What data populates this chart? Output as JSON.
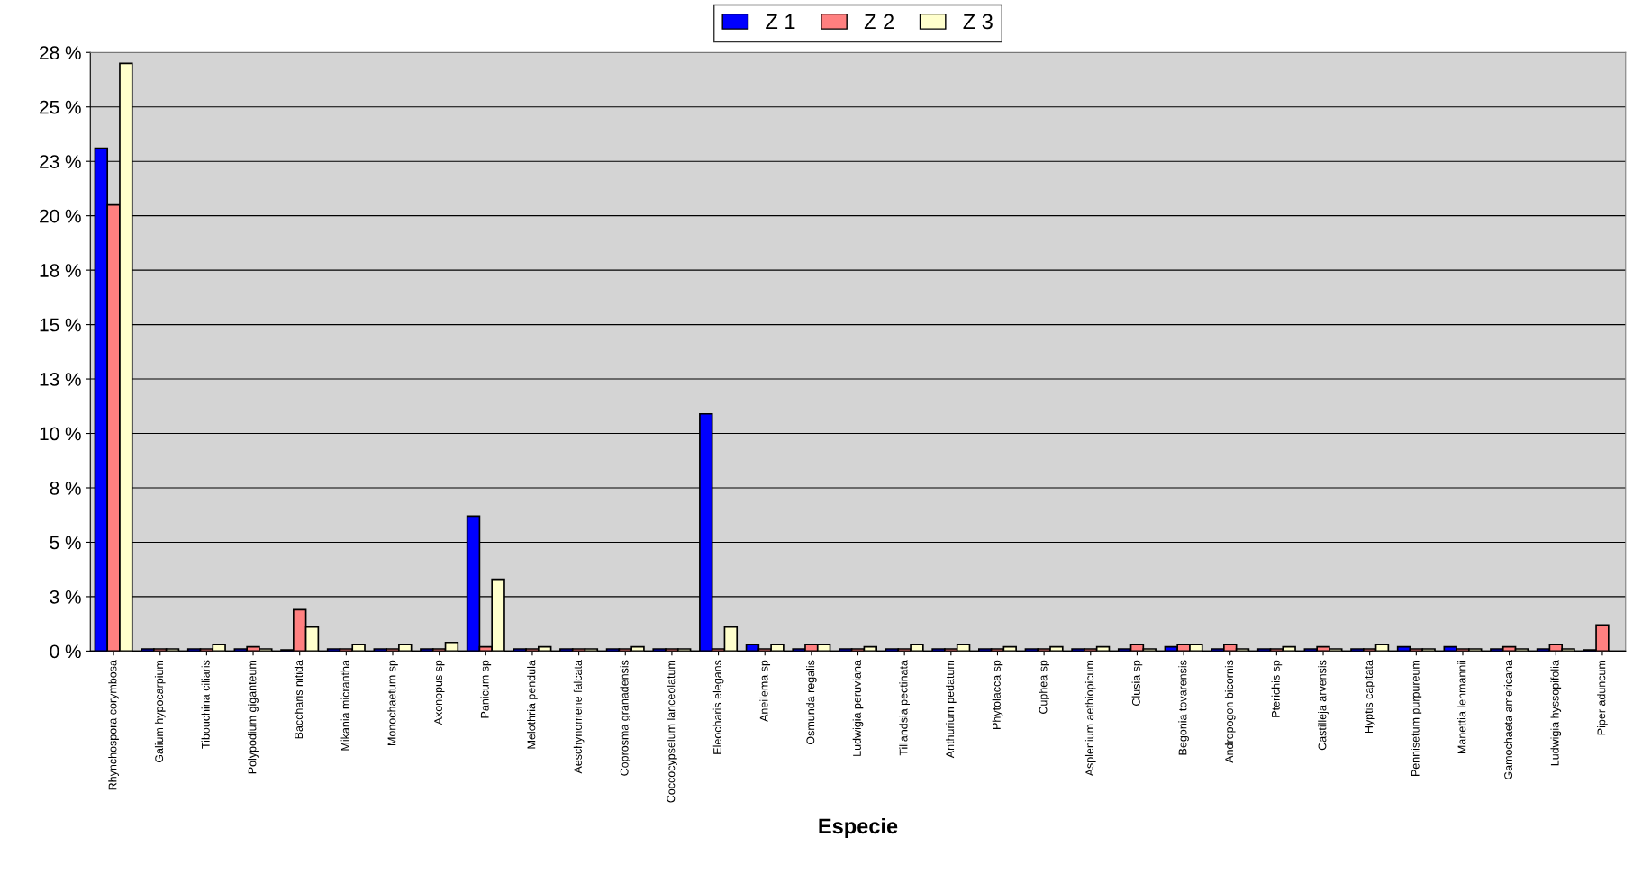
{
  "chart_data": {
    "type": "bar",
    "xlabel": "Especie",
    "categories": [
      "Rhynchospora corymbosa",
      "Galium hypocarpium",
      "Tibouchina ciliaris",
      "Polypodium giganteum",
      "Baccharis nitida",
      "Mikania micrantha",
      "Monochaetum sp",
      "Axonopus sp",
      "Panicum sp",
      "Melothria pendula",
      "Aeschynomene falcata",
      "Coprosma granadensis",
      "Coccocypselum lanceolatum",
      "Eleocharis elegans",
      "Aneilema sp",
      "Osmunda regalis",
      "Ludwigia peruviana",
      "Tillandsia pectinata",
      "Anthurium pedatum",
      "Phytolacca sp",
      "Cuphea sp",
      "Asplenium aethiopicum",
      "Clusia sp",
      "Begonia tovarensis",
      "Andropogon bicornis",
      "Pterichis sp",
      "Castilleja arvensis",
      "Hyptis capitata",
      "Pennisetum purpureum",
      "Manettia lehmannii",
      "Gamochaeta americana",
      "Ludwigia hyssopifolia",
      "Piper aduncum"
    ],
    "series": [
      {
        "name": "Z 1",
        "color": "#0000ff",
        "values": [
          23.1,
          0.1,
          0.1,
          0.1,
          0.05,
          0.1,
          0.1,
          0.1,
          6.2,
          0.1,
          0.1,
          0.1,
          0.1,
          10.9,
          0.3,
          0.1,
          0.1,
          0.1,
          0.1,
          0.1,
          0.1,
          0.1,
          0.1,
          0.2,
          0.1,
          0.1,
          0.1,
          0.1,
          0.2,
          0.2,
          0.1,
          0.1,
          0.05
        ]
      },
      {
        "name": "Z 2",
        "color": "#ff8080",
        "values": [
          20.5,
          0.1,
          0.1,
          0.2,
          1.9,
          0.1,
          0.1,
          0.1,
          0.2,
          0.1,
          0.1,
          0.1,
          0.1,
          0.1,
          0.1,
          0.3,
          0.1,
          0.1,
          0.1,
          0.1,
          0.1,
          0.1,
          0.3,
          0.3,
          0.3,
          0.1,
          0.2,
          0.1,
          0.1,
          0.1,
          0.2,
          0.3,
          1.2
        ]
      },
      {
        "name": "Z 3",
        "color": "#ffffcc",
        "values": [
          27.0,
          0.1,
          0.3,
          0.1,
          1.1,
          0.3,
          0.3,
          0.4,
          3.3,
          0.2,
          0.1,
          0.2,
          0.1,
          1.1,
          0.3,
          0.3,
          0.2,
          0.3,
          0.3,
          0.2,
          0.2,
          0.2,
          0.1,
          0.3,
          0.1,
          0.2,
          0.1,
          0.3,
          0.1,
          0.1,
          0.1,
          0.1,
          null
        ]
      }
    ],
    "ylim": [
      0,
      27.5
    ],
    "yticks": [
      {
        "value": 0,
        "label": "0 %"
      },
      {
        "value": 2.5,
        "label": "3 %"
      },
      {
        "value": 5,
        "label": "5 %"
      },
      {
        "value": 7.5,
        "label": "8 %"
      },
      {
        "value": 10,
        "label": "10 %"
      },
      {
        "value": 12.5,
        "label": "13 %"
      },
      {
        "value": 15,
        "label": "15 %"
      },
      {
        "value": 17.5,
        "label": "18 %"
      },
      {
        "value": 20,
        "label": "20 %"
      },
      {
        "value": 22.5,
        "label": "23 %"
      },
      {
        "value": 25,
        "label": "25 %"
      },
      {
        "value": 27.5,
        "label": "28 %"
      }
    ],
    "grid": "y",
    "legend": "top"
  }
}
